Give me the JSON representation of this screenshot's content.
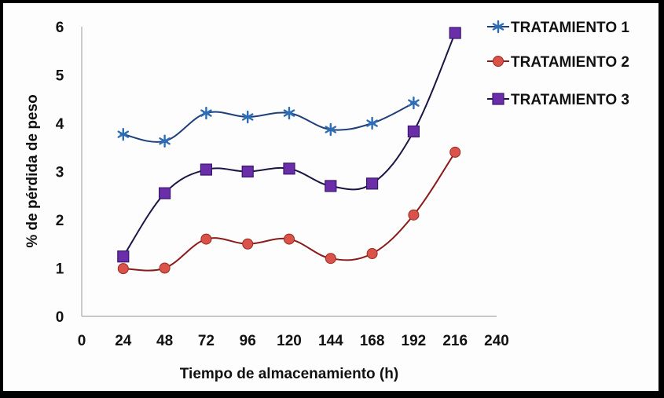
{
  "chart_data": {
    "type": "line",
    "title": "",
    "xlabel": "Tiempo de almacenamiento (h)",
    "ylabel": "% de pérdida de peso",
    "xlim": [
      0,
      240
    ],
    "ylim": [
      0,
      6
    ],
    "x_ticks": [
      "0",
      "24",
      "48",
      "72",
      "96",
      "120",
      "144",
      "168",
      "192",
      "216",
      "240"
    ],
    "y_ticks": [
      "0",
      "1",
      "2",
      "3",
      "4",
      "5",
      "6"
    ],
    "grid": false,
    "smooth": true,
    "legend_position": "top-right",
    "series": [
      {
        "name": "TRATAMIENTO 1",
        "marker": "asterisk",
        "color": "#2e6db4",
        "line_color": "#1f3f7a",
        "x": [
          24,
          48,
          72,
          96,
          120,
          144,
          168,
          192
        ],
        "values": [
          3.77,
          3.63,
          4.21,
          4.13,
          4.21,
          3.87,
          4.0,
          4.42
        ]
      },
      {
        "name": "TRATAMIENTO 2",
        "marker": "circle",
        "color": "#d9534a",
        "line_color": "#8b1a1a",
        "x": [
          24,
          48,
          72,
          96,
          120,
          144,
          168,
          192,
          216
        ],
        "values": [
          0.99,
          1.0,
          1.6,
          1.5,
          1.6,
          1.2,
          1.3,
          2.1,
          3.4
        ]
      },
      {
        "name": "TRATAMIENTO 3",
        "marker": "square",
        "color": "#6a2fa8",
        "line_color": "#1c1444",
        "x": [
          24,
          48,
          72,
          96,
          120,
          144,
          168,
          192,
          216
        ],
        "values": [
          1.24,
          2.55,
          3.04,
          3.0,
          3.06,
          2.7,
          2.75,
          3.83,
          5.87
        ]
      }
    ]
  }
}
